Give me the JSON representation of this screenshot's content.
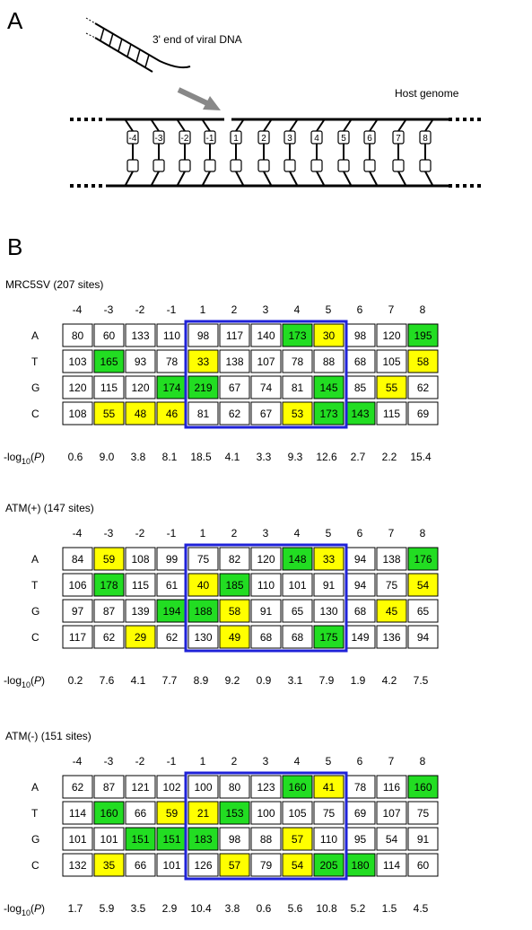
{
  "panel_a": {
    "letter": "A",
    "viral_label": "3' end of viral DNA",
    "host_label": "Host genome",
    "positions": [
      "-4",
      "-3",
      "-2",
      "-1",
      "1",
      "2",
      "3",
      "4",
      "5",
      "6",
      "7",
      "8"
    ]
  },
  "panel_b": {
    "letter": "B",
    "row_labels": [
      "A",
      "T",
      "G",
      "C"
    ],
    "col_labels": [
      "-4",
      "-3",
      "-2",
      "-1",
      "1",
      "2",
      "3",
      "4",
      "5",
      "6",
      "7",
      "8"
    ],
    "p_label_prefix": "-log",
    "p_label_sub": "10",
    "p_label_var": "P",
    "highlight_colors": {
      "green": "#22dd22",
      "yellow": "#ffff00",
      "box": "#1f22d8"
    },
    "tables": [
      {
        "title": "MRC5SV (207 sites)",
        "rows": [
          [
            80,
            60,
            133,
            110,
            98,
            117,
            140,
            173,
            30,
            98,
            120,
            195
          ],
          [
            103,
            165,
            93,
            78,
            33,
            138,
            107,
            78,
            88,
            68,
            105,
            58
          ],
          [
            120,
            115,
            120,
            174,
            219,
            67,
            74,
            81,
            145,
            85,
            55,
            62
          ],
          [
            108,
            55,
            48,
            46,
            81,
            62,
            67,
            53,
            173,
            143,
            115,
            69
          ]
        ],
        "colors": [
          [
            "",
            "",
            "",
            "",
            "",
            "",
            "",
            "g",
            "y",
            "",
            "",
            "g"
          ],
          [
            "",
            "g",
            "",
            "",
            "y",
            "",
            "",
            "",
            "",
            "",
            "",
            "y"
          ],
          [
            "",
            "",
            "",
            "g",
            "g",
            "",
            "",
            "",
            "g",
            "",
            "y",
            ""
          ],
          [
            "",
            "y",
            "y",
            "y",
            "",
            "",
            "",
            "y",
            "g",
            "g",
            "",
            ""
          ]
        ],
        "pvals": [
          "0.6",
          "9.0",
          "3.8",
          "8.1",
          "18.5",
          "4.1",
          "3.3",
          "9.3",
          "12.6",
          "2.7",
          "2.2",
          "15.4"
        ]
      },
      {
        "title": "ATM(+) (147 sites)",
        "rows": [
          [
            84,
            59,
            108,
            99,
            75,
            82,
            120,
            148,
            33,
            94,
            138,
            176
          ],
          [
            106,
            178,
            115,
            61,
            40,
            185,
            110,
            101,
            91,
            94,
            75,
            54
          ],
          [
            97,
            87,
            139,
            194,
            188,
            58,
            91,
            65,
            130,
            68,
            45,
            65
          ],
          [
            117,
            62,
            29,
            62,
            130,
            49,
            68,
            68,
            175,
            149,
            136,
            94
          ]
        ],
        "colors": [
          [
            "",
            "y",
            "",
            "",
            "",
            "",
            "",
            "g",
            "y",
            "",
            "",
            "g"
          ],
          [
            "",
            "g",
            "",
            "",
            "y",
            "g",
            "",
            "",
            "",
            "",
            "",
            "y"
          ],
          [
            "",
            "",
            "",
            "g",
            "g",
            "y",
            "",
            "",
            "",
            "",
            "y",
            ""
          ],
          [
            "",
            "",
            "y",
            "",
            "",
            "y",
            "",
            "",
            "g",
            "",
            "",
            ""
          ]
        ],
        "pvals": [
          "0.2",
          "7.6",
          "4.1",
          "7.7",
          "8.9",
          "9.2",
          "0.9",
          "3.1",
          "7.9",
          "1.9",
          "4.2",
          "7.5"
        ]
      },
      {
        "title": "ATM(-) (151 sites)",
        "rows": [
          [
            62,
            87,
            121,
            102,
            100,
            80,
            123,
            160,
            41,
            78,
            116,
            160
          ],
          [
            114,
            160,
            66,
            59,
            21,
            153,
            100,
            105,
            75,
            69,
            107,
            75
          ],
          [
            101,
            101,
            151,
            151,
            183,
            98,
            88,
            57,
            110,
            95,
            54,
            91
          ],
          [
            132,
            35,
            66,
            101,
            126,
            57,
            79,
            54,
            205,
            180,
            114,
            60
          ]
        ],
        "colors": [
          [
            "",
            "",
            "",
            "",
            "",
            "",
            "",
            "g",
            "y",
            "",
            "",
            "g"
          ],
          [
            "",
            "g",
            "",
            "y",
            "y",
            "g",
            "",
            "",
            "",
            "",
            "",
            ""
          ],
          [
            "",
            "",
            "g",
            "g",
            "g",
            "",
            "",
            "y",
            "",
            "",
            "",
            ""
          ],
          [
            "",
            "y",
            "",
            "",
            "",
            "y",
            "",
            "y",
            "g",
            "g",
            "",
            ""
          ]
        ],
        "pvals": [
          "1.7",
          "5.9",
          "3.5",
          "2.9",
          "10.4",
          "3.8",
          "0.6",
          "5.6",
          "10.8",
          "5.2",
          "1.5",
          "4.5"
        ]
      }
    ]
  }
}
